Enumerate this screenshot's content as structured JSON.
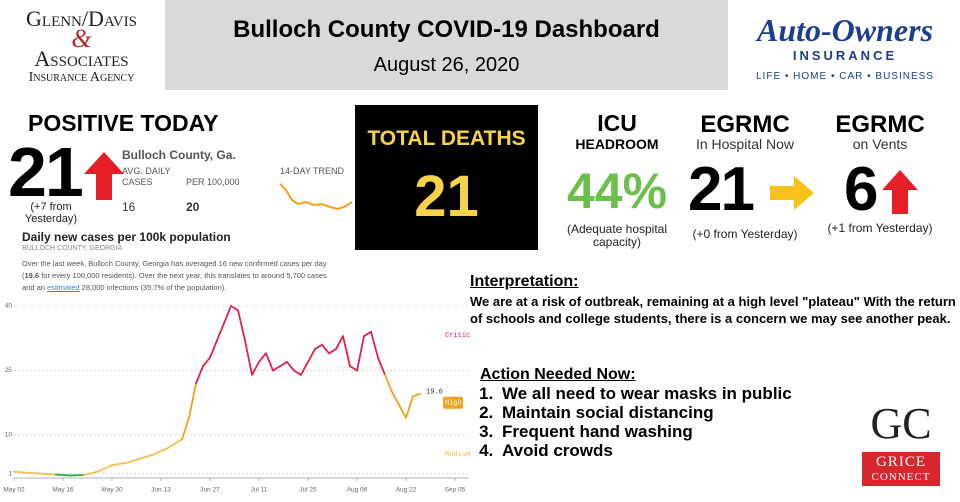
{
  "header": {
    "logo_left": {
      "line1": "Glenn/Davis",
      "amp": "&",
      "line2": "Associates",
      "line3": "Insurance Agency"
    },
    "title": "Bulloch County COVID-19 Dashboard",
    "date": "August 26, 2020",
    "logo_right": {
      "name": "Auto-Owners",
      "sub": "INSURANCE",
      "tagline": "LIFE • HOME • CAR • BUSINESS"
    }
  },
  "positive": {
    "heading": "POSITIVE TODAY",
    "value": 21,
    "change": "(+7  from Yesterday)"
  },
  "county_box": {
    "place": "Bulloch County, Ga.",
    "avg_label": "AVG. DAILY CASES",
    "per_label": "PER 100,000",
    "avg_value": 16,
    "per_value": 20,
    "trend_label": "14-DAY TREND"
  },
  "deaths": {
    "label": "TOTAL DEATHS",
    "value": 21
  },
  "icu": {
    "title": "ICU",
    "subtitle": "HEADROOM",
    "value": "44%",
    "note": "(Adequate hospital capacity)"
  },
  "hospital": {
    "title": "EGRMC",
    "subtitle": "In Hospital Now",
    "value": 21,
    "note": "(+0 from Yesterday)"
  },
  "vents": {
    "title": "EGRMC",
    "subtitle": "on Vents",
    "value": 6,
    "note": "(+1 from Yesterday)"
  },
  "interpretation": {
    "heading": "Interpretation:",
    "text": "We are at a risk of outbreak, remaining at a high level \"plateau\" With the return of schools and college students, there is a concern we may see another peak."
  },
  "actions": {
    "heading": "Action Needed Now:",
    "items": [
      "We all need to wear masks in public",
      "Maintain social distancing",
      "Frequent hand washing",
      "Avoid crowds"
    ]
  },
  "footer_logo": {
    "initials": "GC",
    "name": "GRICE",
    "sub": "CONNECT"
  },
  "chart_data": {
    "type": "line",
    "title": "Daily new cases per 100k population",
    "subtitle": "BULLOCH COUNTY, GEORGIA",
    "description": [
      "Over the last week, Bulloch County, Georgia has averaged 16 new confirmed cases per day (",
      "19.6",
      " for every 100,000 residents). Over the next year, this translates to around 5,700 cases and an ",
      "estimated",
      " 28,000 infections (35.7% of the population)."
    ],
    "x": [
      0,
      4,
      8,
      12,
      16,
      20,
      24,
      28,
      32,
      36,
      40,
      44,
      48,
      50,
      52,
      54,
      56,
      58,
      60,
      62,
      64,
      66,
      68,
      70,
      72,
      74,
      76,
      78,
      80,
      82,
      84,
      86,
      88,
      90,
      92,
      94,
      96,
      98,
      100,
      102,
      104,
      106,
      108,
      110,
      112,
      114,
      116
    ],
    "values": [
      1.5,
      1.2,
      1.0,
      0.8,
      0.6,
      0.7,
      1.5,
      3,
      3.5,
      4.5,
      5.5,
      7,
      9,
      14,
      22,
      26,
      28,
      32,
      36,
      40,
      39,
      32,
      24,
      27,
      29,
      25,
      26,
      27,
      25,
      24,
      27,
      30,
      31,
      29,
      30,
      33,
      26,
      25,
      33,
      34,
      28,
      24,
      20,
      17,
      14,
      19,
      19.6
    ],
    "end_label": "19.6",
    "base_color": "#2eaa4a",
    "levels": [
      {
        "label": "Critical",
        "from": 25,
        "to": 41.4,
        "color": "#e3204b"
      },
      {
        "label": "High",
        "from": 10,
        "to": 25,
        "color": "#f6a01a"
      },
      {
        "label": "Medium",
        "from": 1,
        "to": 10,
        "color": "#f5c04a"
      }
    ],
    "xlim": [
      0,
      130
    ],
    "ylim": [
      0,
      41.4
    ],
    "xticks": [
      {
        "value": 0,
        "label": "May 02"
      },
      {
        "value": 14,
        "label": "May 16"
      },
      {
        "value": 28,
        "label": "May 30"
      },
      {
        "value": 42,
        "label": "Jun 13"
      },
      {
        "value": 56,
        "label": "Jun 27"
      },
      {
        "value": 70,
        "label": "Jul 11"
      },
      {
        "value": 84,
        "label": "Jul 25"
      },
      {
        "value": 98,
        "label": "Aug 08"
      },
      {
        "value": 112,
        "label": "Aug 22"
      },
      {
        "value": 126,
        "label": "Sep 05"
      }
    ],
    "yticks": [
      1,
      10,
      25,
      40
    ],
    "grid": true
  }
}
